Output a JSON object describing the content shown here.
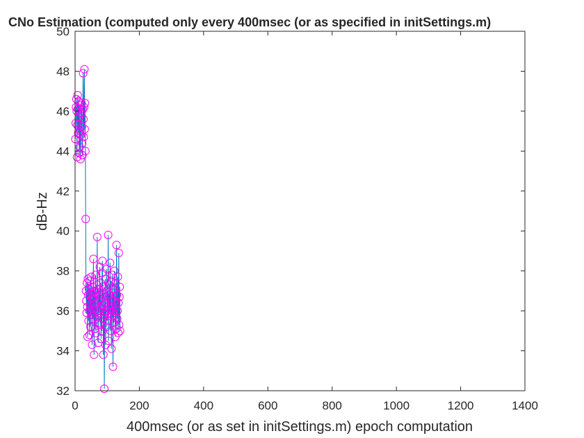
{
  "window": {
    "background": "#ffffff"
  },
  "chart_data": {
    "type": "line",
    "title": "CNo Estimation (computed only every 400msec (or as specified in initSettings.m)",
    "xlabel": "400msec (or as set in initSettings.m) epoch computation",
    "ylabel": "dB-Hz",
    "xlim": [
      0,
      1400
    ],
    "ylim": [
      32,
      50
    ],
    "xticks": [
      0,
      200,
      400,
      600,
      800,
      1000,
      1200,
      1400
    ],
    "yticks": [
      32,
      34,
      36,
      38,
      40,
      42,
      44,
      46,
      48,
      50
    ],
    "grid": false,
    "legend": "none",
    "line_color": "#0072bd",
    "marker": "circle",
    "marker_color": "#ff00ff",
    "series": [
      {
        "x_start": 1,
        "x_step": 1,
        "y": [
          44.6,
          45.4,
          46.2,
          46.6,
          46.0,
          43.7,
          45.3,
          46.8,
          46.1,
          44.9,
          46.5,
          45.7,
          43.9,
          44.2,
          46.3,
          45.0,
          43.6,
          44.8,
          45.9,
          46.4,
          45.2,
          44.4,
          43.8,
          46.1,
          47.9,
          45.6,
          44.7,
          46.2,
          48.1,
          45.1,
          46.4,
          44.0,
          40.6,
          37.0,
          36.5,
          35.9,
          37.4,
          36.2,
          34.7,
          37.6,
          36.8,
          35.5,
          37.1,
          36.0,
          34.8,
          37.5,
          36.3,
          35.2,
          36.9,
          37.7,
          35.8,
          36.6,
          34.3,
          37.2,
          36.1,
          35.6,
          38.6,
          36.7,
          33.8,
          37.0,
          36.4,
          35.1,
          36.9,
          37.8,
          34.9,
          36.2,
          35.7,
          37.3,
          39.7,
          36.0,
          35.4,
          34.4,
          37.1,
          36.5,
          35.9,
          36.8,
          38.2,
          35.3,
          36.6,
          37.4,
          34.6,
          36.1,
          35.0,
          37.9,
          38.5,
          36.3,
          35.6,
          33.8,
          36.9,
          37.2,
          32.1,
          35.8,
          36.4,
          37.6,
          34.3,
          36.0,
          35.2,
          38.1,
          36.7,
          37.0,
          35.5,
          36.2,
          39.8,
          34.5,
          36.8,
          35.9,
          37.3,
          36.1,
          38.4,
          35.0,
          36.6,
          37.5,
          34.1,
          36.3,
          35.7,
          37.8,
          36.0,
          33.2,
          36.9,
          35.4,
          37.1,
          38.0,
          35.8,
          36.5,
          34.7,
          37.4,
          36.2,
          35.1,
          39.3,
          36.8,
          35.6,
          36.0,
          37.7,
          34.9,
          36.4,
          38.9,
          35.3,
          36.7,
          37.2,
          35.0
        ]
      }
    ]
  }
}
